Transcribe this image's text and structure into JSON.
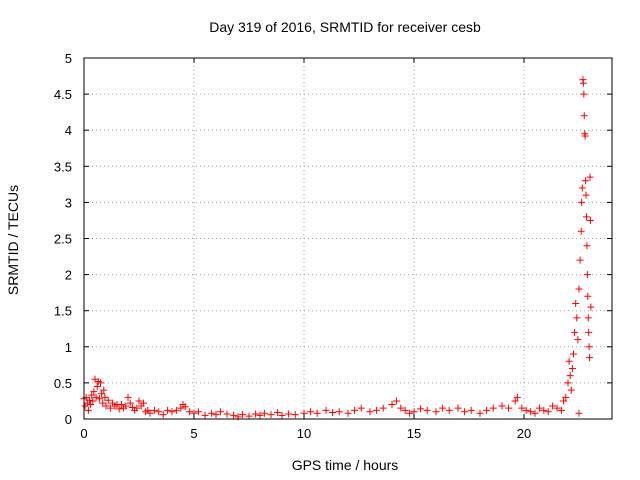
{
  "chart_data": {
    "type": "scatter",
    "title": "Day 319 of 2016, SRMTID for receiver cesb",
    "xlabel": "GPS time / hours",
    "ylabel": "SRMTID / TECUs",
    "xlim": [
      0,
      24
    ],
    "ylim": [
      0,
      5
    ],
    "xticks": [
      0,
      5,
      10,
      15,
      20
    ],
    "xtick_labels": [
      "0",
      "5",
      "10",
      "15",
      "20"
    ],
    "yticks": [
      0,
      0.5,
      1,
      1.5,
      2,
      2.5,
      3,
      3.5,
      4,
      4.5,
      5
    ],
    "ytick_labels": [
      "0",
      "0.5",
      "1",
      "1.5",
      "2",
      "2.5",
      "3",
      "3.5",
      "4",
      "4.5",
      "5"
    ],
    "grid": true,
    "legend": "none",
    "marker": "plus",
    "color": "#ff0000",
    "series": [
      {
        "name": "",
        "points": [
          [
            0.0,
            0.28
          ],
          [
            0.05,
            0.18
          ],
          [
            0.1,
            0.3
          ],
          [
            0.15,
            0.22
          ],
          [
            0.2,
            0.12
          ],
          [
            0.25,
            0.26
          ],
          [
            0.3,
            0.2
          ],
          [
            0.35,
            0.33
          ],
          [
            0.4,
            0.25
          ],
          [
            0.45,
            0.38
          ],
          [
            0.5,
            0.55
          ],
          [
            0.55,
            0.3
          ],
          [
            0.6,
            0.45
          ],
          [
            0.65,
            0.52
          ],
          [
            0.7,
            0.28
          ],
          [
            0.75,
            0.5
          ],
          [
            0.8,
            0.35
          ],
          [
            0.85,
            0.22
          ],
          [
            0.9,
            0.4
          ],
          [
            0.95,
            0.3
          ],
          [
            1.0,
            0.18
          ],
          [
            1.1,
            0.26
          ],
          [
            1.2,
            0.15
          ],
          [
            1.3,
            0.22
          ],
          [
            1.4,
            0.18
          ],
          [
            1.5,
            0.2
          ],
          [
            1.6,
            0.14
          ],
          [
            1.7,
            0.2
          ],
          [
            1.8,
            0.15
          ],
          [
            1.9,
            0.18
          ],
          [
            2.0,
            0.3
          ],
          [
            2.1,
            0.22
          ],
          [
            2.2,
            0.16
          ],
          [
            2.3,
            0.12
          ],
          [
            2.4,
            0.15
          ],
          [
            2.5,
            0.25
          ],
          [
            2.6,
            0.18
          ],
          [
            2.7,
            0.22
          ],
          [
            2.8,
            0.1
          ],
          [
            2.9,
            0.12
          ],
          [
            3.0,
            0.08
          ],
          [
            3.2,
            0.12
          ],
          [
            3.4,
            0.1
          ],
          [
            3.6,
            0.06
          ],
          [
            3.8,
            0.12
          ],
          [
            4.0,
            0.1
          ],
          [
            4.2,
            0.12
          ],
          [
            4.4,
            0.15
          ],
          [
            4.5,
            0.2
          ],
          [
            4.6,
            0.17
          ],
          [
            4.8,
            0.1
          ],
          [
            5.0,
            0.08
          ],
          [
            5.2,
            0.1
          ],
          [
            5.5,
            0.05
          ],
          [
            5.8,
            0.08
          ],
          [
            6.0,
            0.06
          ],
          [
            6.2,
            0.1
          ],
          [
            6.5,
            0.07
          ],
          [
            6.8,
            0.05
          ],
          [
            7.0,
            0.03
          ],
          [
            7.2,
            0.06
          ],
          [
            7.5,
            0.04
          ],
          [
            7.8,
            0.07
          ],
          [
            8.0,
            0.05
          ],
          [
            8.2,
            0.08
          ],
          [
            8.5,
            0.06
          ],
          [
            8.8,
            0.09
          ],
          [
            9.0,
            0.05
          ],
          [
            9.3,
            0.07
          ],
          [
            9.6,
            0.06
          ],
          [
            10.0,
            0.08
          ],
          [
            10.3,
            0.1
          ],
          [
            10.6,
            0.08
          ],
          [
            11.0,
            0.12
          ],
          [
            11.3,
            0.09
          ],
          [
            11.6,
            0.1
          ],
          [
            12.0,
            0.08
          ],
          [
            12.3,
            0.12
          ],
          [
            12.6,
            0.15
          ],
          [
            13.0,
            0.1
          ],
          [
            13.3,
            0.12
          ],
          [
            13.6,
            0.15
          ],
          [
            14.0,
            0.2
          ],
          [
            14.2,
            0.25
          ],
          [
            14.4,
            0.15
          ],
          [
            14.6,
            0.12
          ],
          [
            14.8,
            0.08
          ],
          [
            15.0,
            0.1
          ],
          [
            15.3,
            0.14
          ],
          [
            15.6,
            0.12
          ],
          [
            16.0,
            0.1
          ],
          [
            16.3,
            0.15
          ],
          [
            16.6,
            0.12
          ],
          [
            17.0,
            0.15
          ],
          [
            17.3,
            0.1
          ],
          [
            17.6,
            0.12
          ],
          [
            18.0,
            0.08
          ],
          [
            18.3,
            0.12
          ],
          [
            18.6,
            0.15
          ],
          [
            19.0,
            0.18
          ],
          [
            19.3,
            0.15
          ],
          [
            19.6,
            0.25
          ],
          [
            19.7,
            0.3
          ],
          [
            19.9,
            0.15
          ],
          [
            20.1,
            0.12
          ],
          [
            20.3,
            0.1
          ],
          [
            20.5,
            0.08
          ],
          [
            20.7,
            0.15
          ],
          [
            20.9,
            0.12
          ],
          [
            21.1,
            0.1
          ],
          [
            21.3,
            0.18
          ],
          [
            21.5,
            0.15
          ],
          [
            21.7,
            0.12
          ],
          [
            21.8,
            0.25
          ],
          [
            21.9,
            0.3
          ],
          [
            22.0,
            0.5
          ],
          [
            22.05,
            0.8
          ],
          [
            22.1,
            0.6
          ],
          [
            22.15,
            0.4
          ],
          [
            22.2,
            0.7
          ],
          [
            22.25,
            0.9
          ],
          [
            22.3,
            1.2
          ],
          [
            22.35,
            1.6
          ],
          [
            22.4,
            1.4
          ],
          [
            22.45,
            1.1
          ],
          [
            22.5,
            1.8
          ],
          [
            22.55,
            2.2
          ],
          [
            22.6,
            2.6
          ],
          [
            22.62,
            3.0
          ],
          [
            22.65,
            3.2
          ],
          [
            22.68,
            4.7
          ],
          [
            22.7,
            4.65
          ],
          [
            22.72,
            4.5
          ],
          [
            22.74,
            4.2
          ],
          [
            22.76,
            3.95
          ],
          [
            22.78,
            3.92
          ],
          [
            22.8,
            3.3
          ],
          [
            22.82,
            3.1
          ],
          [
            22.84,
            2.8
          ],
          [
            22.86,
            2.4
          ],
          [
            22.88,
            2.0
          ],
          [
            22.9,
            1.7
          ],
          [
            22.92,
            1.4
          ],
          [
            22.94,
            1.2
          ],
          [
            22.96,
            1.0
          ],
          [
            22.98,
            0.85
          ],
          [
            23.0,
            3.35
          ],
          [
            23.02,
            2.75
          ],
          [
            23.04,
            1.55
          ],
          [
            22.5,
            0.08
          ]
        ]
      }
    ]
  }
}
